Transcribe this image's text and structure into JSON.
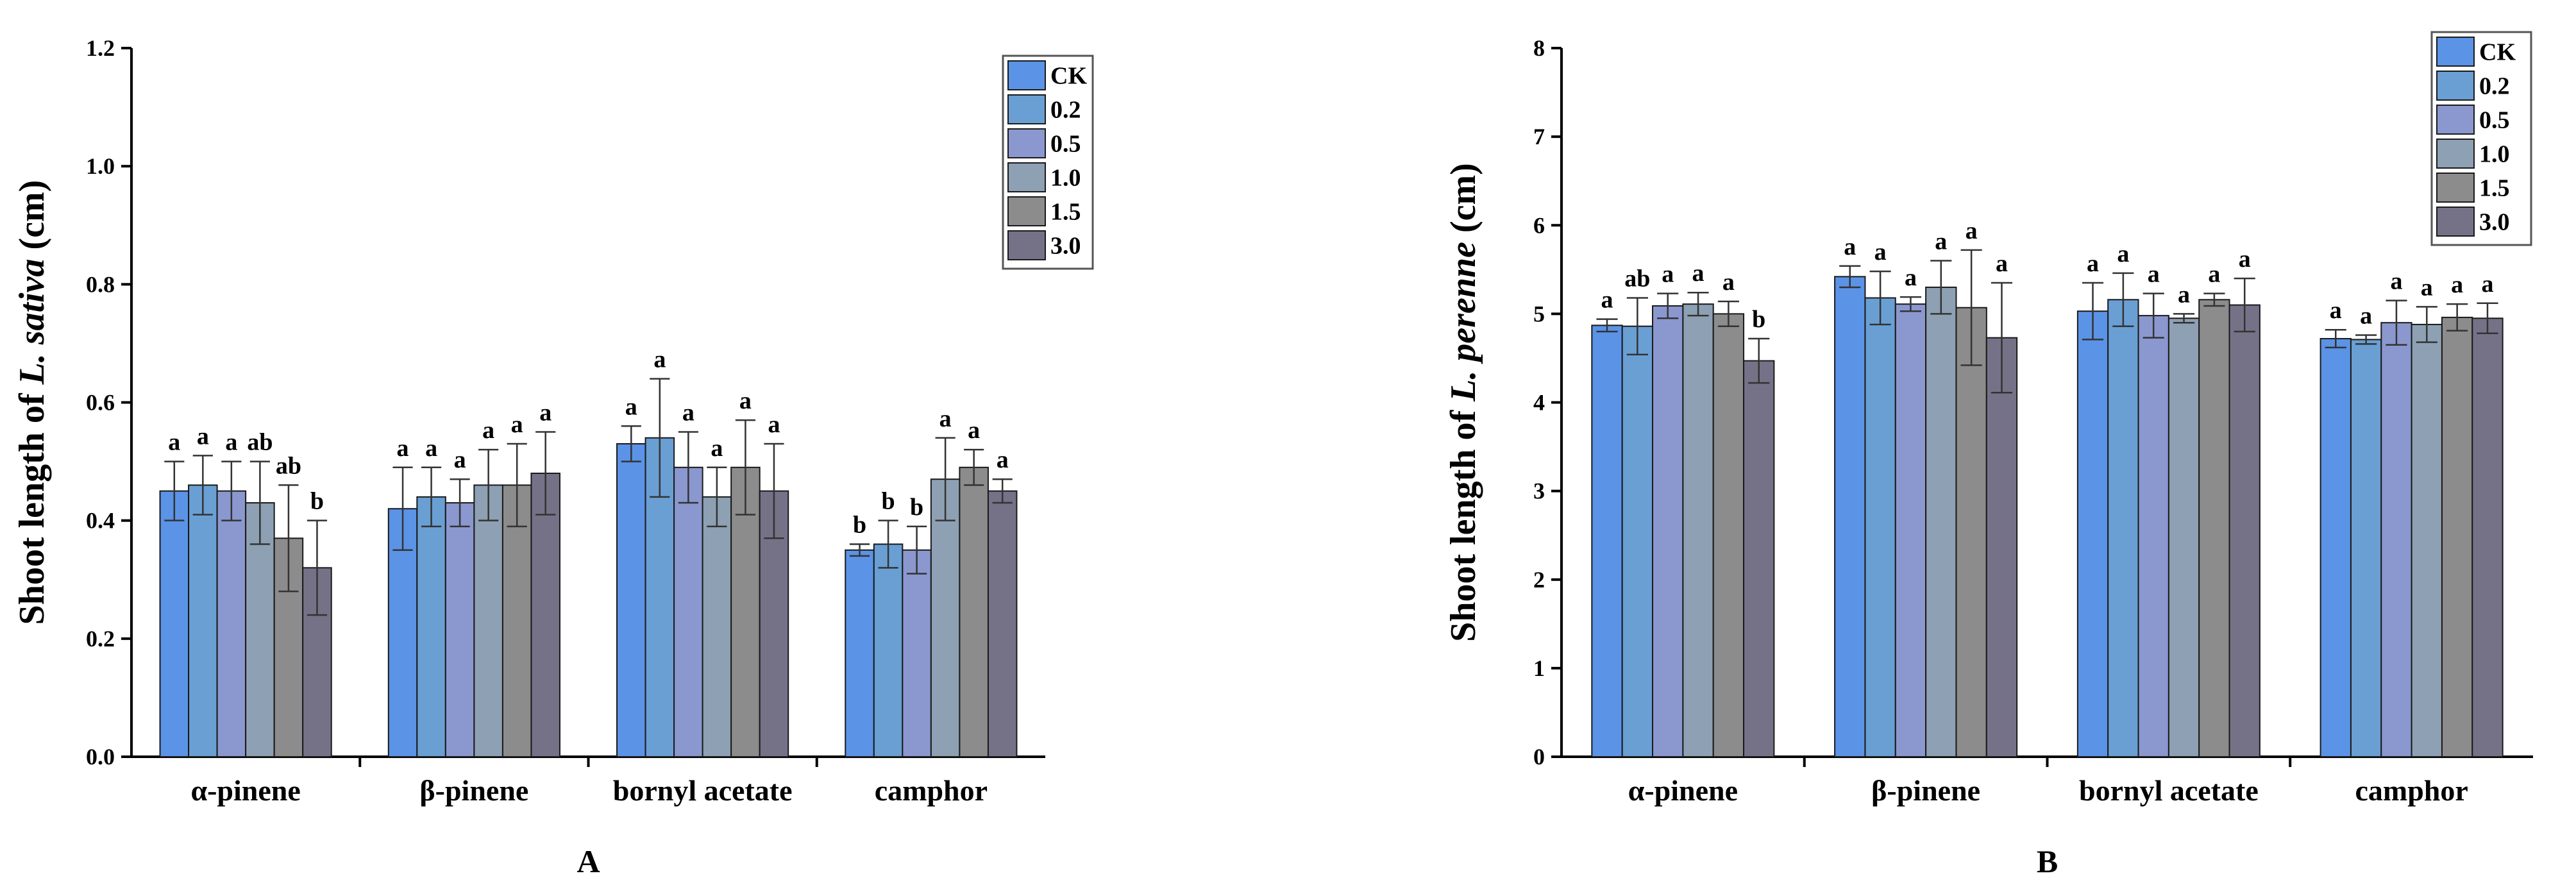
{
  "chart_data": [
    {
      "type": "bar",
      "panel_label": "A",
      "ylabel_prefix": "Shoot length of ",
      "ylabel_species": "L. sativa",
      "ylabel_suffix": " (cm)",
      "ylim": [
        0,
        1.2
      ],
      "yticks": [
        "0.0",
        "0.2",
        "0.4",
        "0.6",
        "0.8",
        "1.0",
        "1.2"
      ],
      "ytick_values": [
        0,
        0.2,
        0.4,
        0.6,
        0.8,
        1.0,
        1.2
      ],
      "categories": [
        "α-pinene",
        "β-pinene",
        "bornyl acetate",
        "camphor"
      ],
      "legend_position": "top-right",
      "series": [
        {
          "name": "CK",
          "color": "#5b93e6",
          "values": [
            0.45,
            0.42,
            0.53,
            0.35
          ],
          "errors": [
            0.05,
            0.07,
            0.03,
            0.01
          ],
          "labels": [
            "a",
            "a",
            "a",
            "b"
          ]
        },
        {
          "name": "0.2",
          "color": "#6a9fd4",
          "values": [
            0.46,
            0.44,
            0.54,
            0.36
          ],
          "errors": [
            0.05,
            0.05,
            0.1,
            0.04
          ],
          "labels": [
            "a",
            "a",
            "a",
            "b"
          ]
        },
        {
          "name": "0.5",
          "color": "#8b98cf",
          "values": [
            0.45,
            0.43,
            0.49,
            0.35
          ],
          "errors": [
            0.05,
            0.04,
            0.06,
            0.04
          ],
          "labels": [
            "a",
            "a",
            "a",
            "b"
          ]
        },
        {
          "name": "1.0",
          "color": "#8ea0b3",
          "values": [
            0.43,
            0.46,
            0.44,
            0.47
          ],
          "errors": [
            0.07,
            0.06,
            0.05,
            0.07
          ],
          "labels": [
            "ab",
            "a",
            "a",
            "a"
          ]
        },
        {
          "name": "1.5",
          "color": "#8c8c8c",
          "values": [
            0.37,
            0.46,
            0.49,
            0.49
          ],
          "errors": [
            0.09,
            0.07,
            0.08,
            0.03
          ],
          "labels": [
            "ab",
            "a",
            "a",
            "a"
          ]
        },
        {
          "name": "3.0",
          "color": "#757288",
          "values": [
            0.32,
            0.48,
            0.45,
            0.45
          ],
          "errors": [
            0.08,
            0.07,
            0.08,
            0.02
          ],
          "labels": [
            "b",
            "a",
            "a",
            "a"
          ]
        }
      ]
    },
    {
      "type": "bar",
      "panel_label": "B",
      "ylabel_prefix": "Shoot length of ",
      "ylabel_species": "L. perenne",
      "ylabel_suffix": " (cm)",
      "ylim": [
        0,
        8
      ],
      "yticks": [
        "0",
        "1",
        "2",
        "3",
        "4",
        "5",
        "6",
        "7",
        "8"
      ],
      "ytick_values": [
        0,
        1,
        2,
        3,
        4,
        5,
        6,
        7,
        8
      ],
      "categories": [
        "α-pinene",
        "β-pinene",
        "bornyl acetate",
        "camphor"
      ],
      "legend_position": "top-right",
      "series": [
        {
          "name": "CK",
          "color": "#5b93e6",
          "values": [
            4.87,
            5.42,
            5.03,
            4.72
          ],
          "errors": [
            0.07,
            0.12,
            0.32,
            0.1
          ],
          "labels": [
            "a",
            "a",
            "a",
            "a"
          ]
        },
        {
          "name": "0.2",
          "color": "#6a9fd4",
          "values": [
            4.86,
            5.18,
            5.16,
            4.71
          ],
          "errors": [
            0.32,
            0.3,
            0.3,
            0.05
          ],
          "labels": [
            "ab",
            "a",
            "a",
            "a"
          ]
        },
        {
          "name": "0.5",
          "color": "#8b98cf",
          "values": [
            5.09,
            5.11,
            4.98,
            4.9
          ],
          "errors": [
            0.14,
            0.08,
            0.25,
            0.25
          ],
          "labels": [
            "a",
            "a",
            "a",
            "a"
          ]
        },
        {
          "name": "1.0",
          "color": "#8ea0b3",
          "values": [
            5.11,
            5.3,
            4.95,
            4.88
          ],
          "errors": [
            0.13,
            0.3,
            0.05,
            0.2
          ],
          "labels": [
            "a",
            "a",
            "a",
            "a"
          ]
        },
        {
          "name": "1.5",
          "color": "#8c8c8c",
          "values": [
            5.0,
            5.07,
            5.16,
            4.96
          ],
          "errors": [
            0.14,
            0.65,
            0.07,
            0.15
          ],
          "labels": [
            "a",
            "a",
            "a",
            "a"
          ]
        },
        {
          "name": "3.0",
          "color": "#757288",
          "values": [
            4.47,
            4.73,
            5.1,
            4.95
          ],
          "errors": [
            0.25,
            0.62,
            0.3,
            0.17
          ],
          "labels": [
            "b",
            "a",
            "a",
            "a"
          ]
        }
      ]
    }
  ]
}
